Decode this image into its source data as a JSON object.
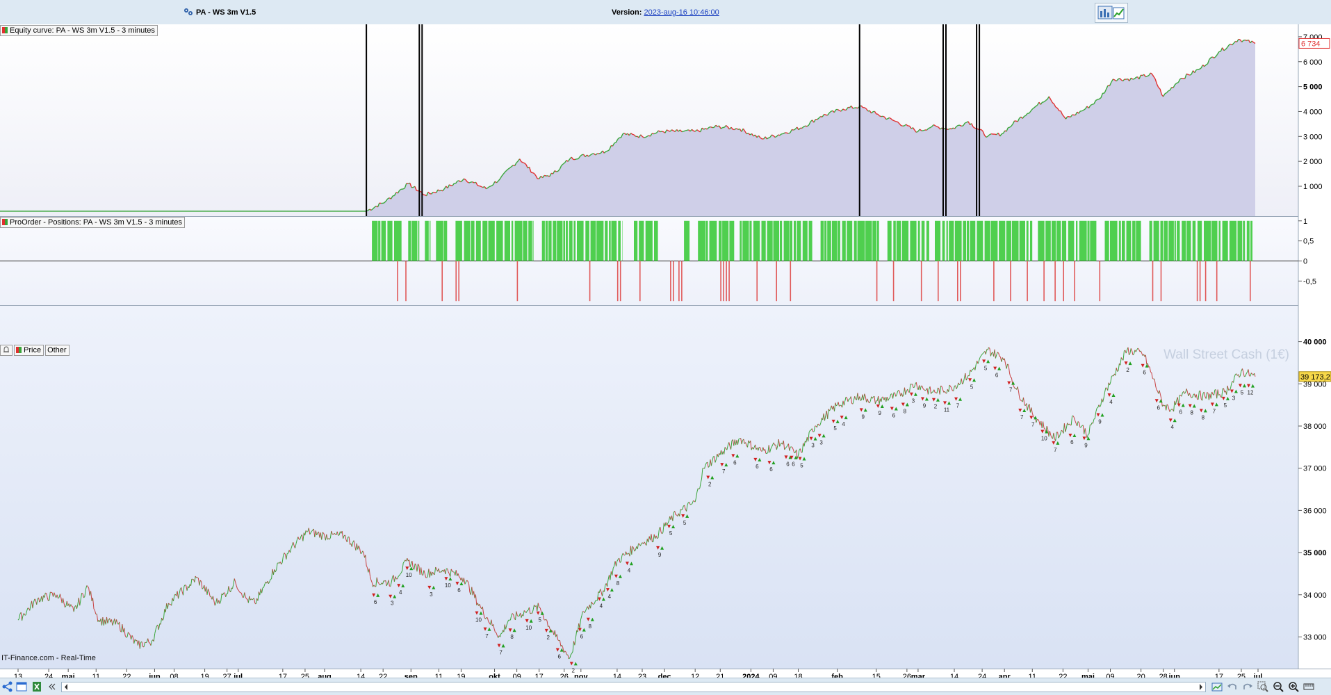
{
  "window": {
    "title": "PA - WS 3m V1.5",
    "version_label": "Version:",
    "version_value": "2023-aug-16 10:46:00"
  },
  "colors": {
    "equity_up": "#3aa53a",
    "equity_down": "#e03030",
    "equity_fill": "#cfcfe8",
    "long_bar": "#4fcf4f",
    "short_bar": "#e05a5a",
    "price_bg_top": "#eef2fb",
    "price_bg_bottom": "#dbe3f5",
    "last_value_bg": "#f7d84a"
  },
  "panels": {
    "equity": {
      "label": "Equity curve: PA - WS 3m V1.5 - 3 minutes"
    },
    "positions": {
      "label": "ProOrder - Positions: PA - WS 3m V1.5 - 3 minutes"
    },
    "price": {
      "tab_price": "Price",
      "tab_other": "Other",
      "watermark": "Wall Street Cash (1€)"
    }
  },
  "footer": {
    "source": "IT-Finance.com - Real-Time"
  },
  "chart_data": [
    {
      "type": "area",
      "name": "Equity curve",
      "y_ticks": [
        "1 000",
        "2 000",
        "3 000",
        "4 000",
        "5 000",
        "6 000",
        "7 000"
      ],
      "y_tick_values": [
        1000,
        2000,
        3000,
        4000,
        5000,
        6000,
        7000
      ],
      "bold_ticks": [
        "5 000"
      ],
      "ylim": [
        -200,
        7500
      ],
      "last_value": "6 734",
      "strategy_start": "2023-08-16",
      "flat_before_start": 0,
      "points": [
        [
          "2023-08-16",
          0
        ],
        [
          "2023-08-23",
          400
        ],
        [
          "2023-08-31",
          1100
        ],
        [
          "2023-09-06",
          650
        ],
        [
          "2023-09-13",
          900
        ],
        [
          "2023-09-20",
          1300
        ],
        [
          "2023-09-28",
          900
        ],
        [
          "2023-10-03",
          1300
        ],
        [
          "2023-10-10",
          2100
        ],
        [
          "2023-10-17",
          1300
        ],
        [
          "2023-10-22",
          1500
        ],
        [
          "2023-10-28",
          2100
        ],
        [
          "2023-11-05",
          2300
        ],
        [
          "2023-11-10",
          2400
        ],
        [
          "2023-11-16",
          3100
        ],
        [
          "2023-11-23",
          3000
        ],
        [
          "2023-11-30",
          3200
        ],
        [
          "2023-12-06",
          3200
        ],
        [
          "2023-12-12",
          3200
        ],
        [
          "2023-12-20",
          3400
        ],
        [
          "2023-12-28",
          3300
        ],
        [
          "2024-01-05",
          2900
        ],
        [
          "2024-01-12",
          3100
        ],
        [
          "2024-01-20",
          3400
        ],
        [
          "2024-01-26",
          3800
        ],
        [
          "2024-02-03",
          4100
        ],
        [
          "2024-02-09",
          4200
        ],
        [
          "2024-02-15",
          3900
        ],
        [
          "2024-02-22",
          3600
        ],
        [
          "2024-03-01",
          3200
        ],
        [
          "2024-03-06",
          3400
        ],
        [
          "2024-03-13",
          3300
        ],
        [
          "2024-03-19",
          3600
        ],
        [
          "2024-03-26",
          3000
        ],
        [
          "2024-03-31",
          3100
        ],
        [
          "2024-04-04",
          3500
        ],
        [
          "2024-04-11",
          4100
        ],
        [
          "2024-04-17",
          4600
        ],
        [
          "2024-04-23",
          3700
        ],
        [
          "2024-04-30",
          4100
        ],
        [
          "2024-05-05",
          4500
        ],
        [
          "2024-05-10",
          5300
        ],
        [
          "2024-05-17",
          5300
        ],
        [
          "2024-05-24",
          5500
        ],
        [
          "2024-05-28",
          4600
        ],
        [
          "2024-06-03",
          5300
        ],
        [
          "2024-06-10",
          5700
        ],
        [
          "2024-06-17",
          6400
        ],
        [
          "2024-06-24",
          6900
        ],
        [
          "2024-06-30",
          6734
        ]
      ],
      "vertical_markers": [
        "2023-08-16",
        "2023-09-04",
        "2023-09-05",
        "2024-02-09",
        "2024-03-10",
        "2024-03-11",
        "2024-03-22",
        "2024-03-23"
      ]
    },
    {
      "type": "bar",
      "name": "Positions",
      "y_ticks": [
        "1",
        "0,5",
        "0",
        "-0,5"
      ],
      "y_tick_values": [
        1,
        0.5,
        0,
        -0.5
      ],
      "ylim": [
        -1.1,
        1.1
      ],
      "long_spans": [
        [
          "2023-08-18",
          "2023-08-29"
        ],
        [
          "2023-08-31",
          "2023-09-04"
        ],
        [
          "2023-09-06",
          "2023-09-08"
        ],
        [
          "2023-09-10",
          "2023-09-14"
        ],
        [
          "2023-09-17",
          "2023-10-15"
        ],
        [
          "2023-10-18",
          "2023-11-16"
        ],
        [
          "2023-11-20",
          "2023-11-29"
        ],
        [
          "2023-12-08",
          "2023-12-10"
        ],
        [
          "2023-12-13",
          "2023-12-26"
        ],
        [
          "2023-12-28",
          "2024-01-23"
        ],
        [
          "2024-01-26",
          "2024-02-16"
        ],
        [
          "2024-02-19",
          "2024-03-05"
        ],
        [
          "2024-03-07",
          "2024-04-11"
        ],
        [
          "2024-04-13",
          "2024-05-04"
        ],
        [
          "2024-05-07",
          "2024-05-20"
        ],
        [
          "2024-05-23",
          "2024-06-29"
        ]
      ],
      "short_dates": [
        "2023-08-27",
        "2023-08-30",
        "2023-09-12",
        "2023-09-17",
        "2023-09-18",
        "2023-10-09",
        "2023-11-04",
        "2023-11-14",
        "2023-11-15",
        "2023-11-22",
        "2023-12-03",
        "2023-12-04",
        "2023-12-06",
        "2023-12-07",
        "2023-12-21",
        "2023-12-22",
        "2023-12-23",
        "2023-12-24",
        "2024-01-03",
        "2024-01-10",
        "2024-01-15",
        "2024-02-15",
        "2024-02-21",
        "2024-03-02",
        "2024-03-08",
        "2024-03-15",
        "2024-03-16",
        "2024-03-28",
        "2024-04-03",
        "2024-04-09",
        "2024-04-15",
        "2024-04-19",
        "2024-04-22",
        "2024-04-26",
        "2024-05-05",
        "2024-05-24",
        "2024-05-27",
        "2024-06-09",
        "2024-06-10",
        "2024-06-12",
        "2024-06-16",
        "2024-06-28"
      ]
    },
    {
      "type": "line",
      "name": "Wall Street Cash (1€)",
      "y_ticks": [
        "33 000",
        "34 000",
        "35 000",
        "36 000",
        "37 000",
        "38 000",
        "39 000",
        "40 000"
      ],
      "y_tick_values": [
        33000,
        34000,
        35000,
        36000,
        37000,
        38000,
        39000,
        40000
      ],
      "bold_ticks": [
        "35 000",
        "40 000"
      ],
      "ylim": [
        32250,
        40850
      ],
      "last_value": "39 173,2",
      "points": [
        [
          "2023-04-13",
          33400
        ],
        [
          "2023-04-20",
          33900
        ],
        [
          "2023-04-27",
          34000
        ],
        [
          "2023-05-03",
          33600
        ],
        [
          "2023-05-08",
          34200
        ],
        [
          "2023-05-12",
          33400
        ],
        [
          "2023-05-19",
          33300
        ],
        [
          "2023-05-26",
          32800
        ],
        [
          "2023-05-31",
          32900
        ],
        [
          "2023-06-06",
          33800
        ],
        [
          "2023-06-13",
          34200
        ],
        [
          "2023-06-16",
          34400
        ],
        [
          "2023-06-23",
          33800
        ],
        [
          "2023-06-30",
          34300
        ],
        [
          "2023-07-04",
          33900
        ],
        [
          "2023-07-07",
          33800
        ],
        [
          "2023-07-14",
          34600
        ],
        [
          "2023-07-20",
          35100
        ],
        [
          "2023-07-26",
          35500
        ],
        [
          "2023-08-01",
          35400
        ],
        [
          "2023-08-08",
          35400
        ],
        [
          "2023-08-15",
          35000
        ],
        [
          "2023-08-18",
          34300
        ],
        [
          "2023-08-25",
          34300
        ],
        [
          "2023-08-31",
          34800
        ],
        [
          "2023-09-06",
          34500
        ],
        [
          "2023-09-13",
          34600
        ],
        [
          "2023-09-20",
          34400
        ],
        [
          "2023-09-26",
          33700
        ],
        [
          "2023-10-03",
          33000
        ],
        [
          "2023-10-06",
          33400
        ],
        [
          "2023-10-12",
          33600
        ],
        [
          "2023-10-17",
          33700
        ],
        [
          "2023-10-23",
          33000
        ],
        [
          "2023-10-28",
          32500
        ],
        [
          "2023-11-02",
          33600
        ],
        [
          "2023-11-09",
          34100
        ],
        [
          "2023-11-14",
          34800
        ],
        [
          "2023-11-22",
          35200
        ],
        [
          "2023-11-28",
          35400
        ],
        [
          "2023-12-05",
          35900
        ],
        [
          "2023-12-12",
          36200
        ],
        [
          "2023-12-15",
          37000
        ],
        [
          "2023-12-22",
          37400
        ],
        [
          "2023-12-28",
          37700
        ],
        [
          "2024-01-05",
          37400
        ],
        [
          "2024-01-12",
          37600
        ],
        [
          "2024-01-18",
          37300
        ],
        [
          "2024-01-24",
          38000
        ],
        [
          "2024-02-01",
          38500
        ],
        [
          "2024-02-09",
          38700
        ],
        [
          "2024-02-15",
          38600
        ],
        [
          "2024-02-22",
          38700
        ],
        [
          "2024-02-29",
          39000
        ],
        [
          "2024-03-06",
          38800
        ],
        [
          "2024-03-13",
          38900
        ],
        [
          "2024-03-19",
          39200
        ],
        [
          "2024-03-26",
          39800
        ],
        [
          "2024-04-01",
          39600
        ],
        [
          "2024-04-05",
          38900
        ],
        [
          "2024-04-11",
          38300
        ],
        [
          "2024-04-19",
          37700
        ],
        [
          "2024-04-26",
          38200
        ],
        [
          "2024-05-01",
          37800
        ],
        [
          "2024-05-07",
          38800
        ],
        [
          "2024-05-15",
          39800
        ],
        [
          "2024-05-21",
          39700
        ],
        [
          "2024-05-28",
          38500
        ],
        [
          "2024-05-31",
          38400
        ],
        [
          "2024-06-05",
          38800
        ],
        [
          "2024-06-12",
          38700
        ],
        [
          "2024-06-19",
          38800
        ],
        [
          "2024-06-25",
          39300
        ],
        [
          "2024-06-30",
          39173
        ]
      ],
      "trade_markers": [
        [
          "2023-08-19",
          "6"
        ],
        [
          "2023-08-25",
          "3"
        ],
        [
          "2023-08-28",
          "4"
        ],
        [
          "2023-08-31",
          "10"
        ],
        [
          "2023-09-08",
          "3"
        ],
        [
          "2023-09-14",
          "10"
        ],
        [
          "2023-09-18",
          "6"
        ],
        [
          "2023-09-25",
          "10"
        ],
        [
          "2023-09-28",
          "7"
        ],
        [
          "2023-10-03",
          "7"
        ],
        [
          "2023-10-07",
          "8"
        ],
        [
          "2023-10-13",
          "10"
        ],
        [
          "2023-10-17",
          "5"
        ],
        [
          "2023-10-20",
          "2"
        ],
        [
          "2023-10-24",
          "6"
        ],
        [
          "2023-10-29",
          "2"
        ],
        [
          "2023-11-01",
          "6"
        ],
        [
          "2023-11-04",
          "8"
        ],
        [
          "2023-11-08",
          "4"
        ],
        [
          "2023-11-11",
          "4"
        ],
        [
          "2023-11-14",
          "8"
        ],
        [
          "2023-11-18",
          "4"
        ],
        [
          "2023-11-29",
          "9"
        ],
        [
          "2023-12-03",
          "5"
        ],
        [
          "2023-12-08",
          "5"
        ],
        [
          "2023-12-17",
          "2"
        ],
        [
          "2023-12-22",
          "7"
        ],
        [
          "2023-12-26",
          "6"
        ],
        [
          "2024-01-03",
          "6"
        ],
        [
          "2024-01-08",
          "6"
        ],
        [
          "2024-01-14",
          "6"
        ],
        [
          "2024-01-16",
          "6"
        ],
        [
          "2024-01-19",
          "5"
        ],
        [
          "2024-01-23",
          "3"
        ],
        [
          "2024-01-26",
          "3"
        ],
        [
          "2024-01-31",
          "5"
        ],
        [
          "2024-02-03",
          "4"
        ],
        [
          "2024-02-10",
          "9"
        ],
        [
          "2024-02-16",
          "9"
        ],
        [
          "2024-02-21",
          "6"
        ],
        [
          "2024-02-25",
          "8"
        ],
        [
          "2024-02-28",
          "3"
        ],
        [
          "2024-03-03",
          "9"
        ],
        [
          "2024-03-07",
          "2"
        ],
        [
          "2024-03-11",
          "11"
        ],
        [
          "2024-03-15",
          "7"
        ],
        [
          "2024-03-20",
          "5"
        ],
        [
          "2024-03-25",
          "5"
        ],
        [
          "2024-03-29",
          "6"
        ],
        [
          "2024-04-03",
          "7"
        ],
        [
          "2024-04-07",
          "7"
        ],
        [
          "2024-04-11",
          "7"
        ],
        [
          "2024-04-15",
          "10"
        ],
        [
          "2024-04-19",
          "7"
        ],
        [
          "2024-04-25",
          "6"
        ],
        [
          "2024-04-30",
          "9"
        ],
        [
          "2024-05-05",
          "9"
        ],
        [
          "2024-05-09",
          "4"
        ],
        [
          "2024-05-15",
          "2"
        ],
        [
          "2024-05-21",
          "6"
        ],
        [
          "2024-05-26",
          "6"
        ],
        [
          "2024-05-31",
          "4"
        ],
        [
          "2024-06-03",
          "6"
        ],
        [
          "2024-06-07",
          "8"
        ],
        [
          "2024-06-11",
          "8"
        ],
        [
          "2024-06-15",
          "7"
        ],
        [
          "2024-06-19",
          "5"
        ],
        [
          "2024-06-22",
          "3"
        ],
        [
          "2024-06-25",
          "5"
        ],
        [
          "2024-06-28",
          "12"
        ]
      ]
    }
  ],
  "x_axis_labels": [
    {
      "label": "13",
      "date": "2023-04-13"
    },
    {
      "label": "24",
      "date": "2023-04-24"
    },
    {
      "label": "maj",
      "date": "2023-05-01",
      "bold": true
    },
    {
      "label": "11",
      "date": "2023-05-11"
    },
    {
      "label": "22",
      "date": "2023-05-22"
    },
    {
      "label": "jun",
      "date": "2023-06-01",
      "bold": true
    },
    {
      "label": "08",
      "date": "2023-06-08"
    },
    {
      "label": "19",
      "date": "2023-06-19"
    },
    {
      "label": "27",
      "date": "2023-06-27"
    },
    {
      "label": "jul",
      "date": "2023-07-01",
      "bold": true
    },
    {
      "label": "17",
      "date": "2023-07-17"
    },
    {
      "label": "25",
      "date": "2023-07-25"
    },
    {
      "label": "aug",
      "date": "2023-08-01",
      "bold": true
    },
    {
      "label": "14",
      "date": "2023-08-14"
    },
    {
      "label": "22",
      "date": "2023-08-22"
    },
    {
      "label": "sep",
      "date": "2023-09-01",
      "bold": true
    },
    {
      "label": "11",
      "date": "2023-09-11"
    },
    {
      "label": "19",
      "date": "2023-09-19"
    },
    {
      "label": "okt",
      "date": "2023-10-01",
      "bold": true
    },
    {
      "label": "09",
      "date": "2023-10-09"
    },
    {
      "label": "17",
      "date": "2023-10-17"
    },
    {
      "label": "26",
      "date": "2023-10-26"
    },
    {
      "label": "nov",
      "date": "2023-11-01",
      "bold": true
    },
    {
      "label": "14",
      "date": "2023-11-14"
    },
    {
      "label": "23",
      "date": "2023-11-23"
    },
    {
      "label": "dec",
      "date": "2023-12-01",
      "bold": true
    },
    {
      "label": "12",
      "date": "2023-12-12"
    },
    {
      "label": "21",
      "date": "2023-12-21"
    },
    {
      "label": "2024",
      "date": "2024-01-01",
      "bold": true
    },
    {
      "label": "09",
      "date": "2024-01-09"
    },
    {
      "label": "18",
      "date": "2024-01-18"
    },
    {
      "label": "feb",
      "date": "2024-02-01",
      "bold": true
    },
    {
      "label": "15",
      "date": "2024-02-15"
    },
    {
      "label": "26",
      "date": "2024-02-26"
    },
    {
      "label": "mar",
      "date": "2024-03-01",
      "bold": true
    },
    {
      "label": "14",
      "date": "2024-03-14"
    },
    {
      "label": "24",
      "date": "2024-03-24"
    },
    {
      "label": "apr",
      "date": "2024-04-01",
      "bold": true
    },
    {
      "label": "11",
      "date": "2024-04-11"
    },
    {
      "label": "22",
      "date": "2024-04-22"
    },
    {
      "label": "maj",
      "date": "2024-05-01",
      "bold": true
    },
    {
      "label": "09",
      "date": "2024-05-09"
    },
    {
      "label": "20",
      "date": "2024-05-20"
    },
    {
      "label": "28",
      "date": "2024-05-28"
    },
    {
      "label": "jun",
      "date": "2024-06-01",
      "bold": true
    },
    {
      "label": "17",
      "date": "2024-06-17"
    },
    {
      "label": "25",
      "date": "2024-06-25"
    },
    {
      "label": "jul",
      "date": "2024-07-01",
      "bold": true
    }
  ],
  "toolbar": {
    "icons": [
      "share-icon",
      "window-icon",
      "excel-icon",
      "collapse-icon"
    ],
    "right_icons": [
      "report-icon",
      "undo-icon",
      "redo-icon",
      "zoom-area-icon",
      "zoom-out-icon",
      "zoom-in-icon",
      "settings-icon"
    ]
  }
}
